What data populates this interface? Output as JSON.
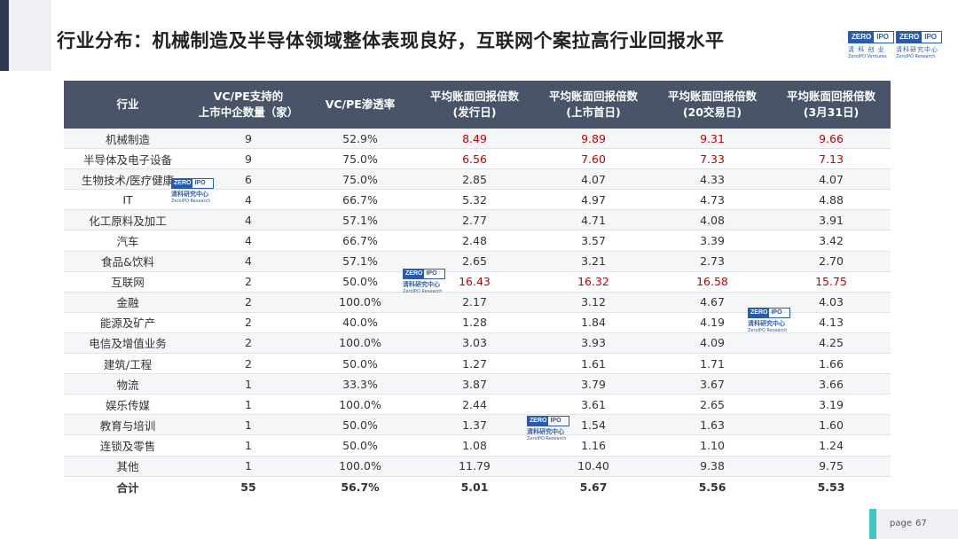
{
  "title": "行业分布：机械制造及半导体领域整体表现良好，互联网个案拉高行业回报水平",
  "logos": [
    {
      "word1": "ZERO",
      "word2": "IPO",
      "cn": "清 科 创 业",
      "en": "ZeroIPO Ventures"
    },
    {
      "word1": "ZERO",
      "word2": "IPO",
      "cn": "清科研究中心",
      "en": "ZeroIPO Research"
    }
  ],
  "watermark": {
    "word1": "ZERO",
    "word2": "IPO",
    "cn": "清科研究中心",
    "en": "ZeroIPO Research"
  },
  "table": {
    "headers": [
      "行业",
      "VC/PE支持的\n上市中企数量（家）",
      "VC/PE渗透率",
      "平均账面回报倍数\n(发行日)",
      "平均账面回报倍数\n(上市首日)",
      "平均账面回报倍数\n(20交易日)",
      "平均账面回报倍数\n(3月31日)"
    ],
    "rows": [
      [
        "机械制造",
        "9",
        "52.9%",
        "8.49",
        "9.89",
        "9.31",
        "9.66"
      ],
      [
        "半导体及电子设备",
        "9",
        "75.0%",
        "6.56",
        "7.60",
        "7.33",
        "7.13"
      ],
      [
        "生物技术/医疗健康",
        "6",
        "75.0%",
        "2.85",
        "4.07",
        "4.33",
        "4.07"
      ],
      [
        "IT",
        "4",
        "66.7%",
        "5.32",
        "4.97",
        "4.73",
        "4.88"
      ],
      [
        "化工原料及加工",
        "4",
        "57.1%",
        "2.77",
        "4.71",
        "4.08",
        "3.91"
      ],
      [
        "汽车",
        "4",
        "66.7%",
        "2.48",
        "3.57",
        "3.39",
        "3.42"
      ],
      [
        "食品&饮料",
        "4",
        "57.1%",
        "2.65",
        "3.21",
        "2.73",
        "2.70"
      ],
      [
        "互联网",
        "2",
        "50.0%",
        "16.43",
        "16.32",
        "16.58",
        "15.75"
      ],
      [
        "金融",
        "2",
        "100.0%",
        "2.17",
        "3.12",
        "4.67",
        "4.03"
      ],
      [
        "能源及矿产",
        "2",
        "40.0%",
        "1.28",
        "1.84",
        "4.19",
        "4.13"
      ],
      [
        "电信及增值业务",
        "2",
        "100.0%",
        "3.03",
        "3.93",
        "4.09",
        "4.25"
      ],
      [
        "建筑/工程",
        "2",
        "50.0%",
        "1.27",
        "1.61",
        "1.71",
        "1.66"
      ],
      [
        "物流",
        "1",
        "33.3%",
        "3.87",
        "3.79",
        "3.67",
        "3.66"
      ],
      [
        "娱乐传媒",
        "1",
        "100.0%",
        "2.44",
        "3.61",
        "2.65",
        "3.19"
      ],
      [
        "教育与培训",
        "1",
        "50.0%",
        "1.37",
        "1.54",
        "1.63",
        "1.60"
      ],
      [
        "连锁及零售",
        "1",
        "50.0%",
        "1.08",
        "1.16",
        "1.10",
        "1.24"
      ],
      [
        "其他",
        "1",
        "100.0%",
        "11.79",
        "10.40",
        "9.38",
        "9.75"
      ]
    ],
    "highlight_rows": [
      0,
      1,
      7
    ],
    "highlight_color": "#c00000",
    "total": [
      "合计",
      "55",
      "56.7%",
      "5.01",
      "5.67",
      "5.56",
      "5.53"
    ]
  },
  "page": {
    "label": "page",
    "number": "67"
  },
  "colors": {
    "header_bg": "#4a5468",
    "accent": "#45c4c8",
    "logo_blue": "#2a5ba8"
  }
}
